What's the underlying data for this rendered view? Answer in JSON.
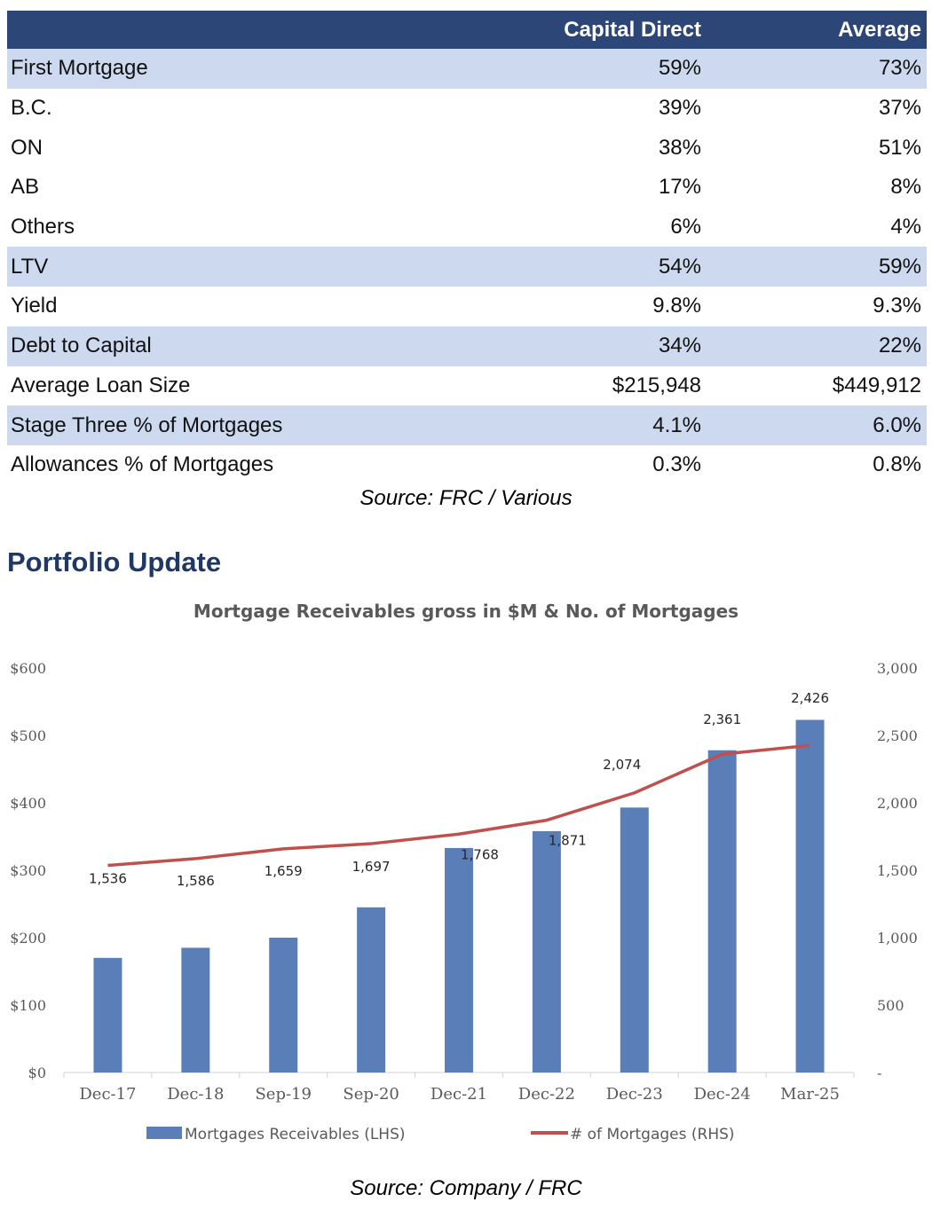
{
  "comparison_table": {
    "headers": [
      "",
      "Capital Direct",
      "Average"
    ],
    "rows": [
      {
        "label": "First Mortgage",
        "capital_direct": "59%",
        "average": "73%",
        "banded": true
      },
      {
        "label": "B.C.",
        "capital_direct": "39%",
        "average": "37%",
        "banded": false
      },
      {
        "label": "ON",
        "capital_direct": "38%",
        "average": "51%",
        "banded": false
      },
      {
        "label": "AB",
        "capital_direct": "17%",
        "average": "8%",
        "banded": false
      },
      {
        "label": "Others",
        "capital_direct": "6%",
        "average": "4%",
        "banded": false
      },
      {
        "label": "LTV",
        "capital_direct": "54%",
        "average": "59%",
        "banded": true
      },
      {
        "label": "Yield",
        "capital_direct": "9.8%",
        "average": "9.3%",
        "banded": false
      },
      {
        "label": "Debt to Capital",
        "capital_direct": "34%",
        "average": "22%",
        "banded": true
      },
      {
        "label": "Average Loan Size",
        "capital_direct": "$215,948",
        "average": "$449,912",
        "banded": false
      },
      {
        "label": "Stage Three % of Mortgages",
        "capital_direct": "4.1%",
        "average": "6.0%",
        "banded": true
      },
      {
        "label": "Allowances % of Mortgages",
        "capital_direct": "0.3%",
        "average": "0.8%",
        "banded": false
      }
    ],
    "source": "Source: FRC / Various"
  },
  "section_title": "Portfolio Update",
  "chart_source": "Source: Company / FRC",
  "colors": {
    "header_bg": "#2b4677",
    "band_bg": "#cdd9ef",
    "section_title": "#1f3864",
    "bar": "#5a7fb8",
    "line": "#c0504d"
  },
  "chart_data": {
    "type": "bar",
    "title": "Mortgage Receivables gross in $M  & No. of Mortgages",
    "categories": [
      "Dec-17",
      "Dec-18",
      "Sep-19",
      "Sep-20",
      "Dec-21",
      "Dec-22",
      "Dec-23",
      "Dec-24",
      "Mar-25"
    ],
    "series": [
      {
        "name": "Mortgages Receivables (LHS)",
        "type": "bar",
        "axis": "left",
        "values": [
          170,
          185,
          200,
          245,
          333,
          358,
          393,
          478,
          523
        ]
      },
      {
        "name": "# of Mortgages (RHS)",
        "type": "line",
        "axis": "right",
        "values": [
          1536,
          1586,
          1659,
          1697,
          1768,
          1871,
          2074,
          2361,
          2426
        ],
        "labels": [
          "1,536",
          "1,586",
          "1,659",
          "1,697",
          "1,768",
          "1,871",
          "2,074",
          "2,361",
          "2,426"
        ]
      }
    ],
    "y_left": {
      "min": 0,
      "max": 600,
      "ticks": [
        "$0",
        "$100",
        "$200",
        "$300",
        "$400",
        "$500",
        "$600"
      ]
    },
    "y_right": {
      "min": 0,
      "max": 3000,
      "ticks": [
        "-",
        "500",
        "1,000",
        "1,500",
        "2,000",
        "2,500",
        "3,000"
      ]
    },
    "legend_position": "bottom",
    "grid": false
  }
}
